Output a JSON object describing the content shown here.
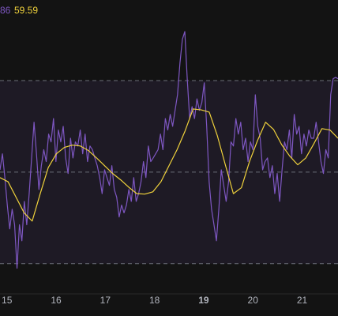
{
  "chart_data": {
    "type": "line",
    "header_labels": [
      "86",
      "59.59"
    ],
    "xlim": [
      14.86,
      21.73
    ],
    "xticks": [
      15,
      16,
      17,
      18,
      19,
      20,
      21
    ],
    "emphasized_xtick_index": 4,
    "ylim": [
      23.4,
      87.6
    ],
    "band": [
      70,
      30
    ],
    "band_color": "rgba(126,87,194,0.10)",
    "hlines": [
      70,
      50,
      30
    ],
    "series": [
      {
        "color": "#7e57c2",
        "values": [
          50.5,
          54.0,
          48.8,
          42.8,
          37.6,
          41.9,
          38.5,
          29.0,
          38.5,
          35.0,
          43.6,
          38.5,
          45.3,
          53.1,
          60.9,
          54.0,
          46.2,
          51.4,
          54.9,
          52.3,
          58.3,
          56.6,
          61.7,
          52.3,
          59.2,
          56.6,
          60.0,
          53.1,
          49.7,
          57.4,
          53.1,
          56.6,
          55.7,
          59.2,
          54.0,
          58.3,
          52.3,
          55.7,
          54.9,
          53.1,
          51.4,
          48.8,
          45.3,
          50.5,
          48.8,
          47.1,
          51.4,
          46.2,
          44.5,
          40.2,
          42.8,
          41.1,
          42.8,
          46.2,
          43.6,
          48.8,
          43.6,
          45.3,
          47.9,
          52.3,
          48.8,
          55.7,
          52.3,
          53.1,
          54.0,
          54.9,
          58.3,
          54.9,
          61.7,
          59.2,
          62.6,
          60.0,
          63.5,
          66.9,
          73.8,
          79.0,
          80.7,
          70.4,
          61.7,
          64.3,
          61.7,
          66.0,
          63.5,
          65.2,
          69.5,
          60.0,
          47.9,
          41.9,
          38.5,
          35.0,
          41.9,
          50.5,
          47.1,
          43.6,
          47.9,
          56.6,
          55.7,
          61.7,
          58.3,
          60.9,
          54.9,
          57.4,
          52.3,
          56.6,
          54.9,
          66.9,
          60.0,
          57.4,
          50.5,
          52.3,
          53.1,
          48.8,
          51.4,
          45.3,
          49.7,
          43.6,
          50.5,
          56.6,
          54.9,
          59.2,
          53.1,
          62.6,
          58.3,
          60.0,
          54.0,
          58.3,
          55.7,
          59.2,
          57.4,
          57.4,
          60.9,
          56.6,
          52.3,
          49.7,
          54.9,
          53.1,
          66.9,
          70.4,
          70.7,
          70.4
        ]
      },
      {
        "color": "#f0d23c",
        "values": [
          48.8,
          47.9,
          44.5,
          41.1,
          39.3,
          45.3,
          51.0,
          54.0,
          55.4,
          55.9,
          55.7,
          54.7,
          53.1,
          51.4,
          49.7,
          48.3,
          46.7,
          45.3,
          45.2,
          45.7,
          47.9,
          51.4,
          54.9,
          59.0,
          63.8,
          63.6,
          63.1,
          58.0,
          51.6,
          45.3,
          46.6,
          52.3,
          56.9,
          60.9,
          59.3,
          56.0,
          53.5,
          51.6,
          53.1,
          56.2,
          59.5,
          59.2,
          57.4
        ]
      }
    ]
  }
}
